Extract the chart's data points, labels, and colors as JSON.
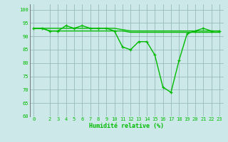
{
  "x": [
    0,
    1,
    2,
    3,
    4,
    5,
    6,
    7,
    8,
    9,
    10,
    11,
    12,
    13,
    14,
    15,
    16,
    17,
    18,
    19,
    20,
    21,
    22,
    23
  ],
  "y_main": [
    93,
    93,
    92,
    92,
    94,
    93,
    94,
    93,
    93,
    93,
    92,
    86,
    85,
    88,
    88,
    83,
    71,
    69,
    81,
    91,
    92,
    93,
    92,
    92
  ],
  "y_smooth_low": [
    93,
    93,
    92,
    92,
    92,
    92,
    92,
    92,
    92,
    92,
    92,
    92,
    91.5,
    91.5,
    91.5,
    91.5,
    91.5,
    91.5,
    91.5,
    91.5,
    91.5,
    91.5,
    91.5,
    91.5
  ],
  "y_smooth_high": [
    93,
    93,
    93,
    93,
    93,
    93,
    93,
    93,
    93,
    93,
    93,
    92.5,
    92,
    92,
    92,
    92,
    92,
    92,
    92,
    92,
    92,
    92,
    92,
    92
  ],
  "line_color": "#00bb00",
  "bg_color": "#cce8e8",
  "grid_color": "#99bbbb",
  "xlabel": "Humidité relative (%)",
  "ylim": [
    60,
    102
  ],
  "yticks": [
    60,
    65,
    70,
    75,
    80,
    85,
    90,
    95,
    100
  ],
  "xticks": [
    0,
    2,
    3,
    4,
    5,
    6,
    7,
    8,
    9,
    10,
    11,
    12,
    13,
    14,
    15,
    16,
    17,
    18,
    19,
    20,
    21,
    22,
    23
  ],
  "xlim": [
    -0.5,
    23.5
  ],
  "marker": "+",
  "markersize": 3.5,
  "linewidth": 1.0
}
